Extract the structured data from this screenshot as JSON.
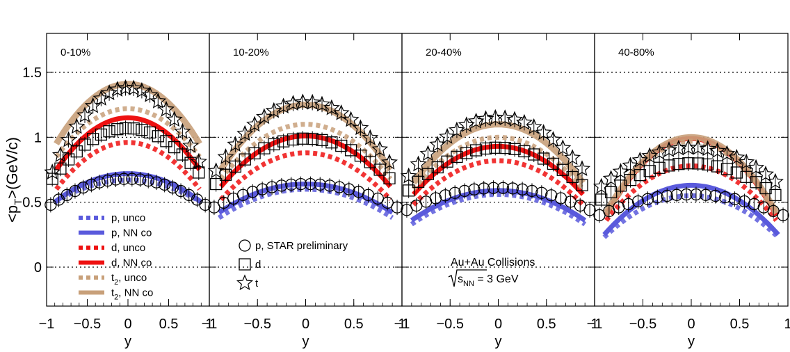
{
  "chart_data": {
    "type": "line",
    "ylabel_main": "<p",
    "ylabel_sub": "T",
    "ylabel_rest": ">(GeV/c)",
    "xlabel": "y",
    "xlim": [
      -1,
      1
    ],
    "ylim": [
      -0.3,
      1.8
    ],
    "yticks": [
      0,
      0.5,
      1,
      1.5
    ],
    "ytick_labels": [
      "0",
      "0.5",
      "1",
      "1.5"
    ],
    "xtick_labels": [
      "−1",
      "−0.5",
      "0",
      "0.5",
      "1"
    ],
    "xticks": [
      -1,
      -0.5,
      0,
      0.5,
      1
    ],
    "colors": {
      "p": "#5a5adc",
      "d": "#ee1111",
      "t": "#c8a07a"
    },
    "legend_model": [
      {
        "key": "p",
        "label": "p, unco",
        "style": "dashed"
      },
      {
        "key": "p",
        "label": "p, NN co",
        "style": "solid"
      },
      {
        "key": "d",
        "label": "d, unco",
        "style": "dashed"
      },
      {
        "key": "d",
        "label": "d, NN co",
        "style": "solid"
      },
      {
        "key": "t",
        "label_main": "t",
        "label_sub": "2",
        "label_rest": ", unco",
        "style": "dashed"
      },
      {
        "key": "t",
        "label_main": "t",
        "label_sub": "2",
        "label_rest": ", NN co",
        "style": "solid"
      }
    ],
    "legend_data": [
      {
        "marker": "circle",
        "label": "p, STAR preliminary"
      },
      {
        "marker": "square",
        "label": "d"
      },
      {
        "marker": "star",
        "label": "t"
      }
    ],
    "annotation_line1": "Au+Au Collisions",
    "annotation_sqrt": "s",
    "annotation_sub": "NN",
    "annotation_rest": " = 3 GeV",
    "panels": [
      {
        "title": "0-10%",
        "model": [
          {
            "key": "p",
            "style": "dashed",
            "y0": 0.67,
            "x_end": 0.9,
            "y_end": 0.5
          },
          {
            "key": "p",
            "style": "solid",
            "y0": 0.72,
            "x_end": 0.9,
            "y_end": 0.5
          },
          {
            "key": "d",
            "style": "dashed",
            "y0": 0.96,
            "x_end": 0.88,
            "y_end": 0.6
          },
          {
            "key": "d",
            "style": "solid",
            "y0": 1.15,
            "x_end": 0.88,
            "y_end": 0.75
          },
          {
            "key": "t",
            "style": "dashed",
            "y0": 1.22,
            "x_end": 0.88,
            "y_end": 0.85
          },
          {
            "key": "t",
            "style": "solid",
            "y0": 1.41,
            "x_end": 0.88,
            "y_end": 0.95
          }
        ],
        "data": [
          {
            "key": "p",
            "y0": 0.68,
            "x_end": 0.95,
            "y_end": 0.48
          },
          {
            "key": "d",
            "y0": 1.07,
            "x_end": 0.93,
            "y_end": 0.68
          },
          {
            "key": "t",
            "y0": 1.38,
            "x_end": 0.93,
            "y_end": 0.73
          }
        ]
      },
      {
        "title": "10-20%",
        "model": [
          {
            "key": "p",
            "style": "dashed",
            "y0": 0.6,
            "x_end": 0.9,
            "y_end": 0.38
          },
          {
            "key": "p",
            "style": "solid",
            "y0": 0.64,
            "x_end": 0.9,
            "y_end": 0.42
          },
          {
            "key": "d",
            "style": "dashed",
            "y0": 0.88,
            "x_end": 0.88,
            "y_end": 0.52
          },
          {
            "key": "d",
            "style": "solid",
            "y0": 1.01,
            "x_end": 0.88,
            "y_end": 0.62
          },
          {
            "key": "t",
            "style": "dashed",
            "y0": 1.1,
            "x_end": 0.88,
            "y_end": 0.68
          },
          {
            "key": "t",
            "style": "solid",
            "y0": 1.25,
            "x_end": 0.88,
            "y_end": 0.75
          }
        ],
        "data": [
          {
            "key": "p",
            "y0": 0.64,
            "x_end": 0.95,
            "y_end": 0.46
          },
          {
            "key": "d",
            "y0": 0.99,
            "x_end": 0.93,
            "y_end": 0.64
          },
          {
            "key": "t",
            "y0": 1.27,
            "x_end": 0.93,
            "y_end": 0.74
          }
        ]
      },
      {
        "title": "20-40%",
        "model": [
          {
            "key": "p",
            "style": "dashed",
            "y0": 0.56,
            "x_end": 0.9,
            "y_end": 0.33
          },
          {
            "key": "p",
            "style": "solid",
            "y0": 0.59,
            "x_end": 0.9,
            "y_end": 0.36
          },
          {
            "key": "d",
            "style": "dashed",
            "y0": 0.82,
            "x_end": 0.88,
            "y_end": 0.48
          },
          {
            "key": "d",
            "style": "solid",
            "y0": 0.93,
            "x_end": 0.88,
            "y_end": 0.56
          },
          {
            "key": "t",
            "style": "dashed",
            "y0": 1.0,
            "x_end": 0.88,
            "y_end": 0.6
          },
          {
            "key": "t",
            "style": "solid",
            "y0": 1.1,
            "x_end": 0.88,
            "y_end": 0.65
          }
        ],
        "data": [
          {
            "key": "p",
            "y0": 0.61,
            "x_end": 0.95,
            "y_end": 0.44
          },
          {
            "key": "d",
            "y0": 0.92,
            "x_end": 0.93,
            "y_end": 0.59
          },
          {
            "key": "t",
            "y0": 1.15,
            "x_end": 0.93,
            "y_end": 0.7
          }
        ]
      },
      {
        "title": "40-80%",
        "model": [
          {
            "key": "p",
            "style": "dashed",
            "y0": 0.55,
            "x_end": 0.9,
            "y_end": 0.23
          },
          {
            "key": "p",
            "style": "solid",
            "y0": 0.63,
            "x_end": 0.9,
            "y_end": 0.25
          },
          {
            "key": "d",
            "style": "dashed",
            "y0": 0.78,
            "x_end": 0.88,
            "y_end": 0.36
          },
          {
            "key": "d",
            "style": "solid",
            "y0": 0.99,
            "x_end": 0.88,
            "y_end": 0.4
          },
          {
            "key": "t",
            "style": "dashed",
            "y0": 0.97,
            "x_end": 0.88,
            "y_end": 0.4
          },
          {
            "key": "t",
            "style": "solid",
            "y0": 1.0,
            "x_end": 0.88,
            "y_end": 0.42
          }
        ],
        "data": [
          {
            "key": "p",
            "y0": 0.56,
            "x_end": 0.95,
            "y_end": 0.4
          },
          {
            "key": "d",
            "y0": 0.8,
            "x_end": 0.93,
            "y_end": 0.52
          },
          {
            "key": "t",
            "y0": 0.92,
            "x_end": 0.93,
            "y_end": 0.62
          }
        ]
      }
    ]
  }
}
